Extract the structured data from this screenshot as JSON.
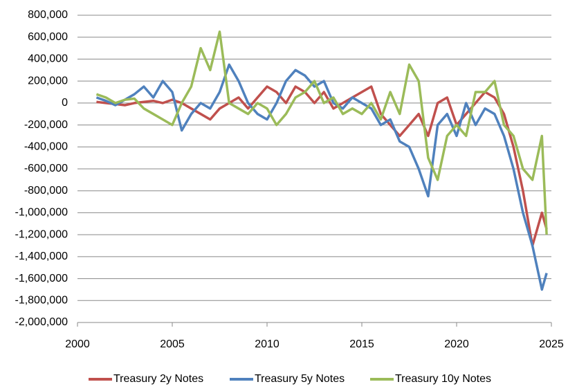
{
  "chart_data": {
    "type": "line",
    "x": [
      2001,
      2001.5,
      2002,
      2002.5,
      2003,
      2003.5,
      2004,
      2004.5,
      2005,
      2005.5,
      2006,
      2006.5,
      2007,
      2007.5,
      2008,
      2008.5,
      2009,
      2009.5,
      2010,
      2010.5,
      2011,
      2011.5,
      2012,
      2012.5,
      2013,
      2013.5,
      2014,
      2014.5,
      2015,
      2015.5,
      2016,
      2016.5,
      2017,
      2017.5,
      2018,
      2018.5,
      2019,
      2019.5,
      2020,
      2020.5,
      2021,
      2021.5,
      2022,
      2022.5,
      2023,
      2023.5,
      2024,
      2024.5,
      2024.75
    ],
    "series": [
      {
        "name": "Treasury 2y Notes",
        "color": "#c0504d",
        "values": [
          10000,
          0,
          -10000,
          -20000,
          0,
          10000,
          20000,
          0,
          30000,
          0,
          -50000,
          -100000,
          -150000,
          -50000,
          0,
          50000,
          -50000,
          50000,
          150000,
          100000,
          0,
          150000,
          100000,
          0,
          100000,
          -50000,
          0,
          50000,
          100000,
          150000,
          -100000,
          -200000,
          -300000,
          -200000,
          -100000,
          -300000,
          0,
          50000,
          -200000,
          -100000,
          0,
          100000,
          50000,
          -100000,
          -400000,
          -800000,
          -1300000,
          -1000000,
          -1150000
        ]
      },
      {
        "name": "Treasury 5y Notes",
        "color": "#4f81bd",
        "values": [
          50000,
          20000,
          -20000,
          30000,
          80000,
          150000,
          50000,
          200000,
          100000,
          -250000,
          -100000,
          0,
          -50000,
          100000,
          350000,
          200000,
          0,
          -100000,
          -150000,
          0,
          200000,
          300000,
          250000,
          150000,
          200000,
          0,
          -50000,
          50000,
          0,
          -50000,
          -200000,
          -150000,
          -350000,
          -400000,
          -600000,
          -850000,
          -200000,
          -100000,
          -300000,
          0,
          -200000,
          -50000,
          -100000,
          -300000,
          -600000,
          -1000000,
          -1300000,
          -1700000,
          -1550000
        ]
      },
      {
        "name": "Treasury 10y Notes",
        "color": "#9bbb59",
        "values": [
          80000,
          50000,
          0,
          30000,
          40000,
          -50000,
          -100000,
          -150000,
          -200000,
          0,
          150000,
          500000,
          300000,
          650000,
          0,
          -50000,
          -100000,
          0,
          -50000,
          -200000,
          -100000,
          50000,
          100000,
          200000,
          0,
          50000,
          -100000,
          -50000,
          -100000,
          0,
          -150000,
          100000,
          -100000,
          350000,
          200000,
          -500000,
          -700000,
          -300000,
          -200000,
          -300000,
          100000,
          100000,
          200000,
          -200000,
          -300000,
          -600000,
          -700000,
          -300000,
          -1200000
        ]
      }
    ],
    "xlim": [
      2000,
      2025
    ],
    "xticks": [
      2000,
      2005,
      2010,
      2015,
      2020,
      2025
    ],
    "ylim": [
      -2000000,
      800000
    ],
    "yticks": [
      {
        "value": -2000000,
        "label": "-2,000,000"
      },
      {
        "value": -1800000,
        "label": "-1,800,000"
      },
      {
        "value": -1600000,
        "label": "-1,600,000"
      },
      {
        "value": -1400000,
        "label": "-1,400,000"
      },
      {
        "value": -1200000,
        "label": "-1,200,000"
      },
      {
        "value": -1000000,
        "label": "-1,000,000"
      },
      {
        "value": -800000,
        "label": "-800,000"
      },
      {
        "value": -600000,
        "label": "-600,000"
      },
      {
        "value": -400000,
        "label": "-400,000"
      },
      {
        "value": -200000,
        "label": "-200,000"
      },
      0,
      {
        "value": 200000,
        "label": "200,000"
      },
      {
        "value": 400000,
        "label": "400,000"
      },
      {
        "value": 600000,
        "label": "600,000"
      },
      {
        "value": 800000,
        "label": "800,000"
      }
    ],
    "grid": true,
    "legend": "bottom"
  }
}
